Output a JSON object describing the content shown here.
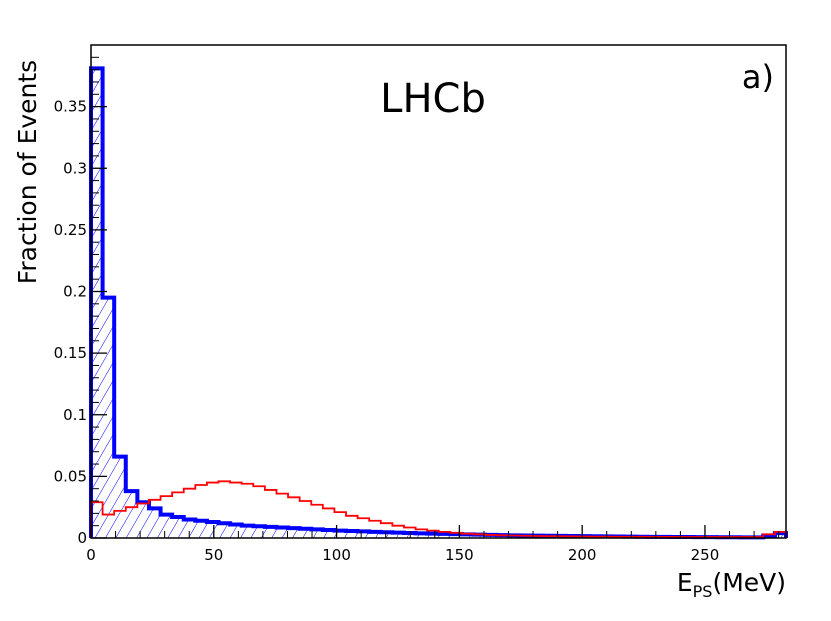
{
  "chart_data": {
    "type": "histogram",
    "xlim": [
      0,
      283
    ],
    "ylim": [
      0,
      0.4
    ],
    "bin_width": 4.72,
    "ylabel": "Fraction of Events",
    "xlabel_main": "E",
    "xlabel_sub": "PS",
    "xlabel_unit": "(MeV)",
    "annotation": "LHCb",
    "panel_label": "a)",
    "x_ticks": [
      0,
      50,
      100,
      150,
      200,
      250
    ],
    "x_tick_labels": [
      "0",
      "50",
      "100",
      "150",
      "200",
      "250"
    ],
    "y_ticks": [
      0,
      0.05,
      0.1,
      0.15,
      0.2,
      0.25,
      0.3,
      0.35
    ],
    "y_tick_labels": [
      "0",
      "0.05",
      "0.1",
      "0.15",
      "0.2",
      "0.25",
      "0.3",
      "0.35"
    ],
    "grid": false,
    "series": [
      {
        "color": "#0000ff",
        "fill": "hatched",
        "values": [
          0.381,
          0.195,
          0.066,
          0.038,
          0.029,
          0.024,
          0.019,
          0.017,
          0.015,
          0.014,
          0.013,
          0.012,
          0.011,
          0.01,
          0.0095,
          0.009,
          0.0085,
          0.008,
          0.0075,
          0.007,
          0.0065,
          0.006,
          0.0057,
          0.0054,
          0.005,
          0.0047,
          0.0044,
          0.0041,
          0.0038,
          0.0035,
          0.0033,
          0.0031,
          0.0029,
          0.0027,
          0.0025,
          0.0023,
          0.0021,
          0.002,
          0.0019,
          0.0018,
          0.0017,
          0.0016,
          0.0015,
          0.0014,
          0.0013,
          0.0012,
          0.0011,
          0.001,
          0.0009,
          0.0009,
          0.0008,
          0.0008,
          0.0007,
          0.0007,
          0.0006,
          0.0006,
          0.0005,
          0.0005,
          0.002,
          0.004
        ]
      },
      {
        "color": "#ff0000",
        "fill": "none",
        "values": [
          0.029,
          0.019,
          0.022,
          0.025,
          0.028,
          0.031,
          0.034,
          0.037,
          0.04,
          0.043,
          0.045,
          0.046,
          0.045,
          0.044,
          0.042,
          0.039,
          0.036,
          0.033,
          0.03,
          0.027,
          0.024,
          0.021,
          0.018,
          0.016,
          0.014,
          0.012,
          0.01,
          0.0085,
          0.007,
          0.006,
          0.005,
          0.0042,
          0.0035,
          0.003,
          0.0025,
          0.0022,
          0.002,
          0.0018,
          0.0016,
          0.0015,
          0.0014,
          0.0013,
          0.0012,
          0.0011,
          0.0011,
          0.001,
          0.001,
          0.001,
          0.0009,
          0.0009,
          0.0009,
          0.0008,
          0.0008,
          0.0008,
          0.0008,
          0.0008,
          0.0008,
          0.0008,
          0.003,
          0.005
        ]
      }
    ]
  }
}
